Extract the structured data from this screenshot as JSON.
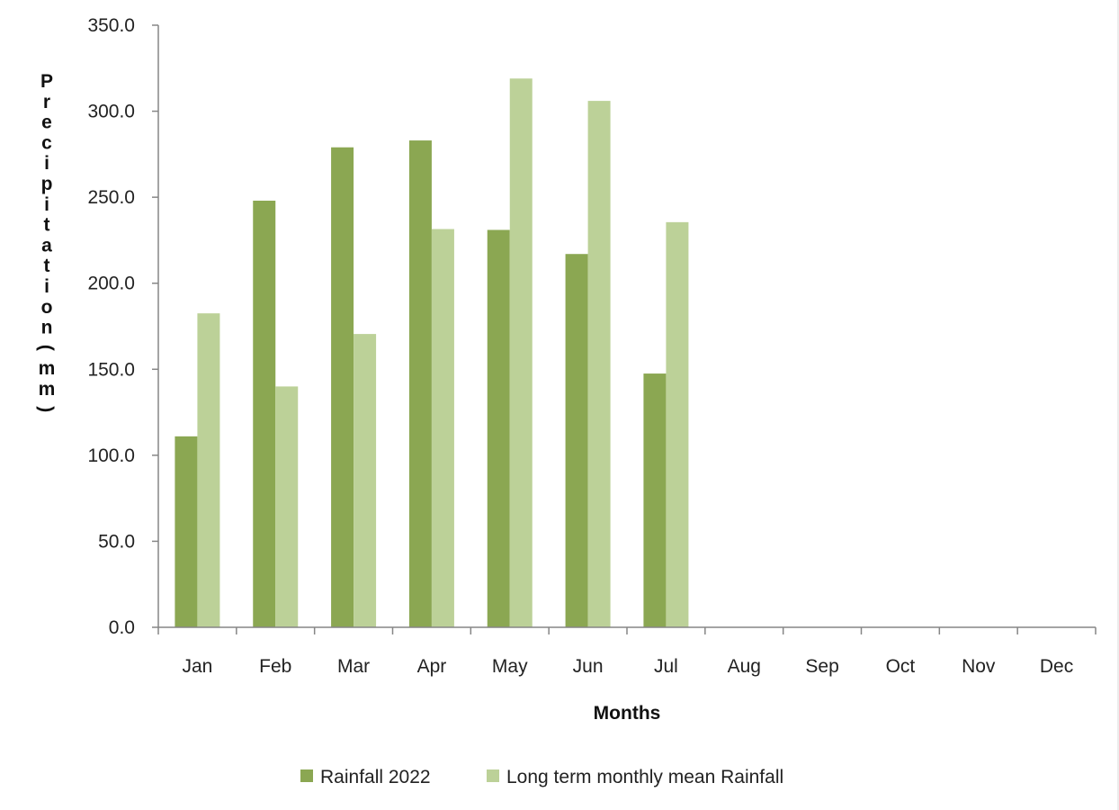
{
  "chart_data": {
    "type": "bar",
    "categories": [
      "Jan",
      "Feb",
      "Mar",
      "Apr",
      "May",
      "Jun",
      "Jul",
      "Aug",
      "Sep",
      "Oct",
      "Nov",
      "Dec"
    ],
    "series": [
      {
        "name": "Rainfall 2022",
        "color": "#8ba752",
        "values": [
          111.0,
          248.0,
          279.0,
          283.0,
          231.0,
          217.0,
          147.5,
          null,
          null,
          null,
          null,
          null
        ]
      },
      {
        "name": "Long term monthly mean Rainfall",
        "color": "#bcd198",
        "values": [
          182.5,
          140.0,
          170.5,
          231.5,
          319.0,
          306.0,
          235.5,
          null,
          null,
          null,
          null,
          null
        ]
      }
    ],
    "title": "",
    "xlabel": "Months",
    "ylabel": "Precipitation(mm)",
    "ylim": [
      0,
      350
    ],
    "yticks": [
      "0.0",
      "50.0",
      "100.0",
      "150.0",
      "200.0",
      "250.0",
      "300.0",
      "350.0"
    ],
    "grid": false,
    "legend": "bottom"
  }
}
